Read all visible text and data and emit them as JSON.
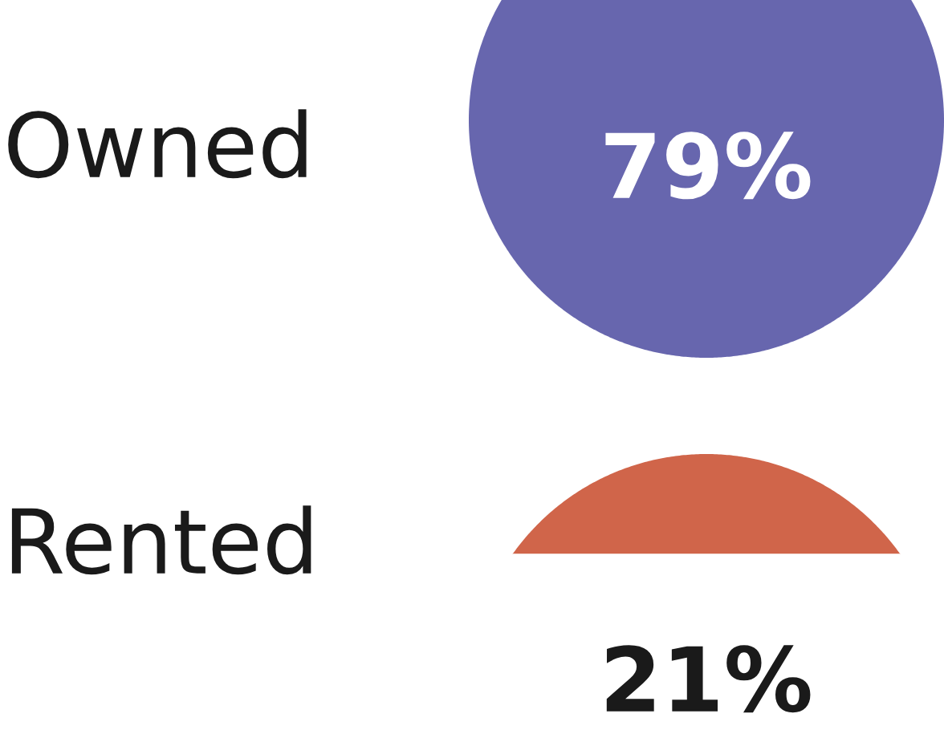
{
  "chart_data": {
    "type": "other",
    "categories": [
      "Owned",
      "Rented"
    ],
    "values": [
      79,
      21
    ],
    "value_labels": [
      "79%",
      "21%"
    ],
    "colors": [
      "#6766ae",
      "#d0654a"
    ]
  }
}
